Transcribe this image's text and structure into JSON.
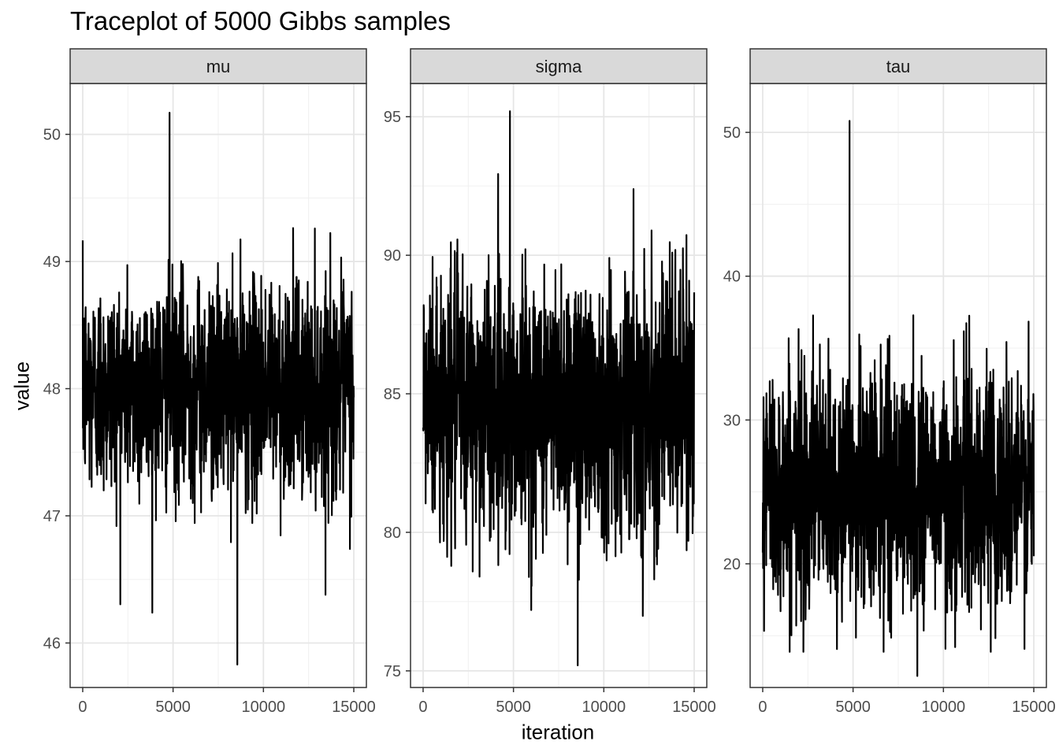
{
  "title": "Traceplot of 5000 Gibbs samples",
  "chart_data": {
    "type": "line",
    "title": "Traceplot of 5000 Gibbs samples",
    "xlabel": "iteration",
    "ylabel": "value",
    "grid": true,
    "legend": "none",
    "x_range": [
      1,
      15000
    ],
    "x_ticks": [
      0,
      5000,
      10000,
      15000
    ],
    "x_tick_labels": [
      "0",
      "5000",
      "10000",
      "15000"
    ],
    "line_color": "#000000",
    "panels": [
      {
        "name": "mu",
        "ylim": [
          45.65,
          50.4
        ],
        "y_ticks": [
          46,
          47,
          48,
          49,
          50
        ],
        "y_tick_labels": [
          "46",
          "47",
          "48",
          "49",
          "50"
        ],
        "center": 48.0,
        "sd": 0.42,
        "max_value": 50.17,
        "min_value": 45.83
      },
      {
        "name": "sigma",
        "ylim": [
          74.4,
          96.2
        ],
        "y_ticks": [
          75,
          80,
          85,
          90,
          95
        ],
        "y_tick_labels": [
          "75",
          "80",
          "85",
          "90",
          "95"
        ],
        "center": 84.7,
        "sd": 2.4,
        "max_value": 95.2,
        "min_value": 75.2
      },
      {
        "name": "tau",
        "ylim": [
          11.4,
          53.4
        ],
        "y_ticks": [
          20,
          30,
          40,
          50
        ],
        "y_tick_labels": [
          "20",
          "30",
          "40",
          "50"
        ],
        "center": 25.2,
        "sd": 4.2,
        "max_value": 50.8,
        "min_value": 12.2
      }
    ]
  }
}
